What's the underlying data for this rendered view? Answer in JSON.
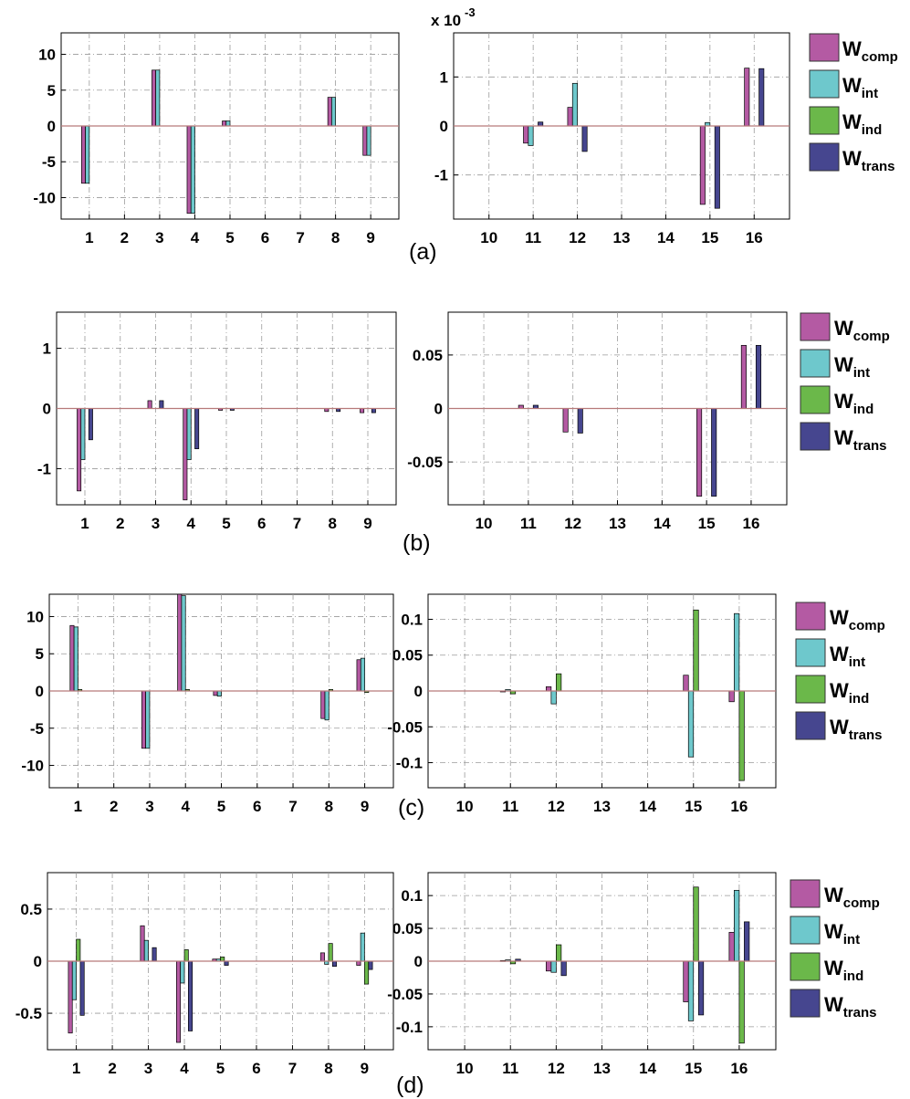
{
  "colors": {
    "series": [
      "#b45aa3",
      "#6ec8cc",
      "#6bb84a",
      "#46468f"
    ],
    "zero_line": "#b77a7a",
    "grid": "#9a9a9a"
  },
  "chart_data": [
    {
      "type": "bar",
      "panel": "a",
      "side": "left",
      "categories": [
        "1",
        "2",
        "3",
        "4",
        "5",
        "6",
        "7",
        "8",
        "9"
      ],
      "ylim": [
        -13,
        13
      ],
      "yticks": [
        -10,
        -5,
        0,
        5,
        10
      ],
      "ytick_labels": [
        "-10",
        "-5",
        "0",
        "5",
        "10"
      ],
      "series": [
        {
          "name": "Wcomp",
          "values": [
            -8.0,
            0,
            7.8,
            -12.2,
            0.7,
            0,
            0,
            4.0,
            -4.1
          ]
        },
        {
          "name": "Wint",
          "values": [
            -8.0,
            0,
            7.8,
            -12.2,
            0.7,
            0,
            0,
            4.0,
            -4.1
          ]
        },
        {
          "name": "Wind",
          "values": [
            0,
            0,
            0,
            0,
            0,
            0,
            0,
            0,
            0
          ]
        },
        {
          "name": "Wtrans",
          "values": [
            0,
            0,
            0,
            0,
            0,
            0,
            0,
            0,
            0
          ]
        }
      ]
    },
    {
      "type": "bar",
      "panel": "a",
      "side": "right",
      "categories": [
        "10",
        "11",
        "12",
        "13",
        "14",
        "15",
        "16"
      ],
      "ylim": [
        -1.9,
        1.9
      ],
      "yticks": [
        -1,
        0,
        1
      ],
      "ytick_labels": [
        "-1",
        "0",
        "1"
      ],
      "scale_label": "x 10",
      "scale_exponent": "-3",
      "series": [
        {
          "name": "Wcomp",
          "values": [
            0,
            -0.35,
            0.38,
            0,
            0,
            -1.6,
            1.18
          ]
        },
        {
          "name": "Wint",
          "values": [
            0,
            -0.4,
            0.87,
            0,
            0,
            0.07,
            0
          ]
        },
        {
          "name": "Wind",
          "values": [
            0,
            0,
            0,
            0,
            0,
            0,
            0
          ]
        },
        {
          "name": "Wtrans",
          "values": [
            0,
            0.08,
            -0.52,
            0,
            0,
            -1.68,
            1.17
          ]
        }
      ]
    },
    {
      "type": "bar",
      "panel": "b",
      "side": "left",
      "categories": [
        "1",
        "2",
        "3",
        "4",
        "5",
        "6",
        "7",
        "8",
        "9"
      ],
      "ylim": [
        -1.6,
        1.6
      ],
      "yticks": [
        -1,
        0,
        1
      ],
      "ytick_labels": [
        "-1",
        "0",
        "1"
      ],
      "series": [
        {
          "name": "Wcomp",
          "values": [
            -1.37,
            0,
            0.13,
            -1.52,
            -0.03,
            0,
            0,
            -0.05,
            -0.07
          ]
        },
        {
          "name": "Wint",
          "values": [
            -0.85,
            0,
            0,
            -0.85,
            0,
            0,
            0,
            0,
            0
          ]
        },
        {
          "name": "Wind",
          "values": [
            0,
            0,
            0,
            0,
            0,
            0,
            0,
            0,
            0
          ]
        },
        {
          "name": "Wtrans",
          "values": [
            -0.52,
            0,
            0.13,
            -0.67,
            -0.03,
            0,
            0,
            -0.05,
            -0.07
          ]
        }
      ]
    },
    {
      "type": "bar",
      "panel": "b",
      "side": "right",
      "categories": [
        "10",
        "11",
        "12",
        "13",
        "14",
        "15",
        "16"
      ],
      "ylim": [
        -0.09,
        0.09
      ],
      "yticks": [
        -0.05,
        0,
        0.05
      ],
      "ytick_labels": [
        "-0.05",
        "0",
        "0.05"
      ],
      "series": [
        {
          "name": "Wcomp",
          "values": [
            0,
            0.003,
            -0.022,
            0,
            0,
            -0.082,
            0.059
          ]
        },
        {
          "name": "Wint",
          "values": [
            0,
            0,
            0,
            0,
            0,
            0,
            0
          ]
        },
        {
          "name": "Wind",
          "values": [
            0,
            0,
            0,
            0,
            0,
            0,
            0
          ]
        },
        {
          "name": "Wtrans",
          "values": [
            0,
            0.003,
            -0.023,
            0,
            0,
            -0.082,
            0.059
          ]
        }
      ]
    },
    {
      "type": "bar",
      "panel": "c",
      "side": "left",
      "categories": [
        "1",
        "2",
        "3",
        "4",
        "5",
        "6",
        "7",
        "8",
        "9"
      ],
      "ylim": [
        -13,
        13
      ],
      "yticks": [
        -10,
        -5,
        0,
        5,
        10
      ],
      "ytick_labels": [
        "-10",
        "-5",
        "0",
        "5",
        "10"
      ],
      "series": [
        {
          "name": "Wcomp",
          "values": [
            8.8,
            0,
            -7.7,
            13.0,
            -0.6,
            0,
            0,
            -3.7,
            4.2
          ]
        },
        {
          "name": "Wint",
          "values": [
            8.6,
            0,
            -7.7,
            12.8,
            -0.7,
            0,
            0,
            -3.9,
            4.4
          ]
        },
        {
          "name": "Wind",
          "values": [
            0.2,
            0,
            0,
            0.2,
            0,
            0,
            0,
            0.2,
            -0.2
          ]
        },
        {
          "name": "Wtrans",
          "values": [
            0,
            0,
            0,
            0,
            0,
            0,
            0,
            0,
            0
          ]
        }
      ]
    },
    {
      "type": "bar",
      "panel": "c",
      "side": "right",
      "categories": [
        "10",
        "11",
        "12",
        "13",
        "14",
        "15",
        "16"
      ],
      "ylim": [
        -0.135,
        0.135
      ],
      "yticks": [
        -0.1,
        -0.05,
        0,
        0.05,
        0.1
      ],
      "ytick_labels": [
        "-0.1",
        "-0.05",
        "0",
        "0.05",
        "0.1"
      ],
      "series": [
        {
          "name": "Wcomp",
          "values": [
            0,
            -0.001,
            0.006,
            0,
            0,
            0.022,
            -0.015
          ]
        },
        {
          "name": "Wint",
          "values": [
            0,
            0.002,
            -0.018,
            0,
            0,
            -0.092,
            0.108
          ]
        },
        {
          "name": "Wind",
          "values": [
            0,
            -0.004,
            0.024,
            0,
            0,
            0.113,
            -0.125
          ]
        },
        {
          "name": "Wtrans",
          "values": [
            0,
            0,
            0,
            0,
            0,
            0,
            0
          ]
        }
      ]
    },
    {
      "type": "bar",
      "panel": "d",
      "side": "left",
      "categories": [
        "1",
        "2",
        "3",
        "4",
        "5",
        "6",
        "7",
        "8",
        "9"
      ],
      "ylim": [
        -0.85,
        0.85
      ],
      "yticks": [
        -0.5,
        0,
        0.5
      ],
      "ytick_labels": [
        "-0.5",
        "0",
        "0.5"
      ],
      "series": [
        {
          "name": "Wcomp",
          "values": [
            -0.69,
            0,
            0.34,
            -0.78,
            0.02,
            0,
            0,
            0.08,
            -0.04
          ]
        },
        {
          "name": "Wint",
          "values": [
            -0.37,
            0,
            0.2,
            -0.21,
            0.02,
            0,
            0,
            -0.03,
            0.27
          ]
        },
        {
          "name": "Wind",
          "values": [
            0.21,
            0,
            0,
            0.11,
            0.04,
            0,
            0,
            0.17,
            -0.22
          ]
        },
        {
          "name": "Wtrans",
          "values": [
            -0.52,
            0,
            0.13,
            -0.67,
            -0.04,
            0,
            0,
            -0.05,
            -0.08
          ]
        }
      ]
    },
    {
      "type": "bar",
      "panel": "d",
      "side": "right",
      "categories": [
        "10",
        "11",
        "12",
        "13",
        "14",
        "15",
        "16"
      ],
      "ylim": [
        -0.135,
        0.135
      ],
      "yticks": [
        -0.1,
        -0.05,
        0,
        0.05,
        0.1
      ],
      "ytick_labels": [
        "-0.1",
        "-0.05",
        "0",
        "0.05",
        "0.1"
      ],
      "series": [
        {
          "name": "Wcomp",
          "values": [
            0,
            0.001,
            -0.015,
            0,
            0,
            -0.062,
            0.044
          ]
        },
        {
          "name": "Wint",
          "values": [
            0,
            0.002,
            -0.017,
            0,
            0,
            -0.091,
            0.108
          ]
        },
        {
          "name": "Wind",
          "values": [
            0,
            -0.004,
            0.025,
            0,
            0,
            0.113,
            -0.125
          ]
        },
        {
          "name": "Wtrans",
          "values": [
            0,
            0.003,
            -0.022,
            0,
            0,
            -0.082,
            0.06
          ]
        }
      ]
    }
  ],
  "legend": {
    "entries": [
      {
        "main": "W",
        "sub": "comp"
      },
      {
        "main": "W",
        "sub": "int"
      },
      {
        "main": "W",
        "sub": "ind"
      },
      {
        "main": "W",
        "sub": "trans"
      }
    ]
  },
  "panel_labels": [
    "(a)",
    "(b)",
    "(c)",
    "(d)"
  ]
}
